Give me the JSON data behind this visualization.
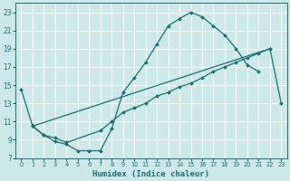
{
  "xlabel": "Humidex (Indice chaleur)",
  "background_color": "#cce8e8",
  "grid_color": "#ffffff",
  "line_color": "#1a7070",
  "xlim": [
    -0.5,
    23.5
  ],
  "ylim": [
    7,
    24
  ],
  "xticks": [
    0,
    1,
    2,
    3,
    4,
    5,
    6,
    7,
    8,
    9,
    10,
    11,
    12,
    13,
    14,
    15,
    16,
    17,
    18,
    19,
    20,
    21,
    22,
    23
  ],
  "yticks": [
    7,
    9,
    11,
    13,
    15,
    17,
    19,
    21,
    23
  ],
  "line1_x": [
    0,
    1,
    2,
    3,
    4,
    5,
    6,
    7,
    8,
    9,
    10,
    11,
    12,
    13,
    14,
    15,
    16,
    17,
    18,
    19,
    20,
    21
  ],
  "line1_y": [
    14.5,
    10.5,
    9.5,
    8.8,
    8.5,
    7.8,
    7.8,
    7.8,
    10.2,
    14.2,
    15.8,
    17.5,
    19.5,
    21.5,
    22.3,
    23.0,
    22.5,
    21.5,
    20.5,
    19.0,
    17.2,
    16.5
  ],
  "line2_x": [
    1,
    2,
    3,
    4,
    7,
    8,
    9,
    10,
    11,
    12,
    13,
    14,
    15,
    16,
    17,
    18,
    19,
    20,
    21,
    22,
    23
  ],
  "line2_y": [
    10.5,
    9.5,
    9.2,
    8.7,
    10.0,
    11.0,
    12.0,
    12.5,
    13.0,
    13.8,
    14.2,
    14.8,
    15.2,
    15.8,
    16.5,
    17.0,
    17.5,
    18.0,
    18.5,
    19.0,
    13.0
  ],
  "line3_x": [
    1,
    22
  ],
  "line3_y": [
    10.5,
    19.0
  ]
}
